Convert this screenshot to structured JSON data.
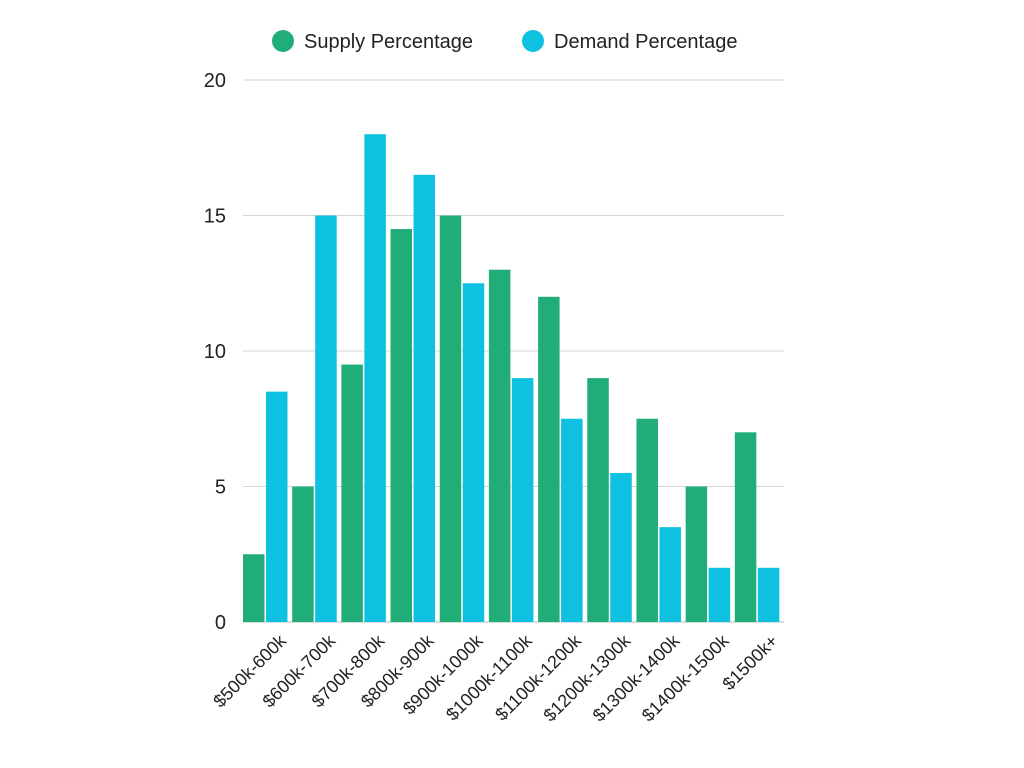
{
  "chart_data": {
    "type": "bar",
    "title": "",
    "xlabel": "",
    "ylabel": "",
    "categories": [
      "$500k-600k",
      "$600k-700k",
      "$700k-800k",
      "$800k-900k",
      "$900k-1000k",
      "$1000k-1100k",
      "$1100k-1200k",
      "$1200k-1300k",
      "$1300k-1400k",
      "$1400k-1500k",
      "$1500k+"
    ],
    "series": [
      {
        "name": "Supply Percentage",
        "color": "#21ad78",
        "values": [
          2.5,
          5,
          9.5,
          14.5,
          15,
          13,
          12,
          9,
          7.5,
          5,
          7
        ]
      },
      {
        "name": "Demand Percentage",
        "color": "#0fc1e0",
        "values": [
          8.5,
          15,
          18,
          16.5,
          12.5,
          9,
          7.5,
          5.5,
          3.5,
          2,
          2
        ]
      }
    ],
    "ylim": [
      0,
      20
    ],
    "yticks": [
      0,
      5,
      10,
      15,
      20
    ],
    "grid": true,
    "legend_position": "top-center"
  }
}
